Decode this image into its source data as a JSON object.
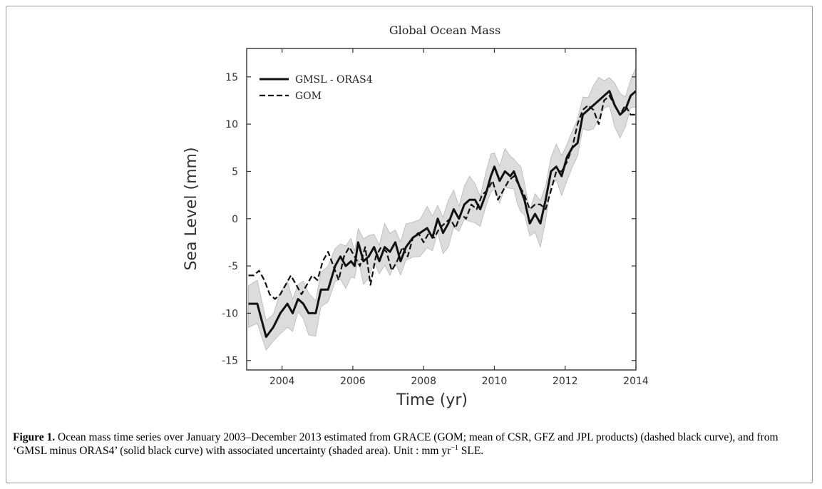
{
  "chart_data": {
    "type": "line",
    "title": "Global Ocean Mass",
    "xlabel": "Time (yr)",
    "ylabel": "Sea Level (mm)",
    "xlim": [
      2003,
      2014
    ],
    "ylim": [
      -16,
      18
    ],
    "xticks": [
      2004,
      2006,
      2008,
      2010,
      2012,
      2014
    ],
    "yticks": [
      -15,
      -10,
      -5,
      0,
      5,
      10,
      15
    ],
    "grid": false,
    "legend_position": "top-left",
    "series": [
      {
        "name": "GMSL - ORAS4",
        "style": "solid",
        "color": "#111111",
        "x": [
          2003.05,
          2003.3,
          2003.55,
          2003.75,
          2003.95,
          2004.15,
          2004.3,
          2004.45,
          2004.6,
          2004.75,
          2004.95,
          2005.1,
          2005.3,
          2005.5,
          2005.65,
          2005.8,
          2005.95,
          2006.05,
          2006.15,
          2006.3,
          2006.45,
          2006.6,
          2006.75,
          2006.9,
          2007.05,
          2007.2,
          2007.35,
          2007.5,
          2007.7,
          2007.9,
          2008.1,
          2008.25,
          2008.4,
          2008.55,
          2008.7,
          2008.85,
          2009.0,
          2009.15,
          2009.3,
          2009.45,
          2009.6,
          2009.75,
          2009.9,
          2010.0,
          2010.15,
          2010.3,
          2010.45,
          2010.55,
          2010.65,
          2010.75,
          2010.85,
          2011.0,
          2011.15,
          2011.3,
          2011.45,
          2011.6,
          2011.75,
          2011.9,
          2012.05,
          2012.2,
          2012.35,
          2012.5,
          2012.65,
          2012.8,
          2012.95,
          2013.1,
          2013.25,
          2013.4,
          2013.55,
          2013.7,
          2013.85,
          2014.0
        ],
        "y": [
          -9,
          -9,
          -12.5,
          -11.5,
          -10,
          -9,
          -10,
          -8.5,
          -9,
          -10,
          -10,
          -7.5,
          -7.5,
          -5,
          -4,
          -5,
          -4.5,
          -5,
          -2.5,
          -4.5,
          -4,
          -3,
          -4.5,
          -3,
          -3.5,
          -2.5,
          -4.5,
          -3,
          -2,
          -1.5,
          -1,
          -2,
          0,
          -1.5,
          -0.5,
          1,
          0,
          1.5,
          2,
          2,
          1,
          2.5,
          4.5,
          5.5,
          4,
          5,
          4.5,
          5,
          4,
          3,
          2,
          -0.5,
          0.5,
          -0.5,
          2,
          5,
          5.5,
          4.5,
          6.5,
          7.5,
          8,
          11,
          11.5,
          12,
          12.5,
          13,
          13.5,
          12,
          11,
          11.5,
          13,
          13.5
        ]
      },
      {
        "name": "GOM",
        "style": "dashed",
        "color": "#111111",
        "x": [
          2003.05,
          2003.2,
          2003.35,
          2003.5,
          2003.65,
          2003.8,
          2003.95,
          2004.1,
          2004.25,
          2004.4,
          2004.55,
          2004.7,
          2004.85,
          2005.0,
          2005.15,
          2005.3,
          2005.45,
          2005.6,
          2005.75,
          2005.9,
          2006.05,
          2006.2,
          2006.35,
          2006.5,
          2006.65,
          2006.8,
          2006.95,
          2007.1,
          2007.25,
          2007.4,
          2007.55,
          2007.7,
          2007.85,
          2008.0,
          2008.15,
          2008.3,
          2008.45,
          2008.6,
          2008.75,
          2008.9,
          2009.05,
          2009.2,
          2009.35,
          2009.5,
          2009.65,
          2009.8,
          2009.95,
          2010.1,
          2010.25,
          2010.4,
          2010.55,
          2010.7,
          2010.85,
          2011.0,
          2011.15,
          2011.3,
          2011.45,
          2011.6,
          2011.75,
          2011.9,
          2012.05,
          2012.2,
          2012.35,
          2012.5,
          2012.65,
          2012.8,
          2012.95,
          2013.1,
          2013.25,
          2013.4,
          2013.55,
          2013.7,
          2013.85,
          2014.0
        ],
        "y": [
          -6,
          -6,
          -5.5,
          -6.5,
          -8,
          -8.5,
          -8,
          -7,
          -6,
          -7,
          -8,
          -7,
          -6,
          -6.5,
          -4.5,
          -3.5,
          -5,
          -6.5,
          -4,
          -3,
          -4,
          -5,
          -3,
          -7,
          -4,
          -3,
          -3.5,
          -5.5,
          -4.5,
          -3,
          -4,
          -2,
          -1.5,
          -2.5,
          -1.5,
          -2,
          -1,
          -0.5,
          0,
          -1,
          0.5,
          0,
          1.5,
          1,
          2.5,
          3,
          4,
          2,
          3,
          4,
          4.5,
          3.5,
          2.5,
          1,
          1.5,
          1.5,
          1,
          3,
          5,
          5,
          6,
          7.5,
          10,
          11.5,
          12,
          11.5,
          10,
          12.5,
          13,
          12,
          11,
          12,
          11,
          11
        ]
      }
    ]
  },
  "caption": {
    "label": "Figure 1.",
    "text": " Ocean mass time series over January 2003–December 2013 estimated from GRACE (GOM; mean of CSR, GFZ and JPL products) (dashed black curve), and from ‘GMSL minus ORAS4’ (solid black curve) with associated uncertainty (shaded area). Unit : mm yr",
    "unit_exponent": "−1",
    "unit_tail": " SLE."
  }
}
